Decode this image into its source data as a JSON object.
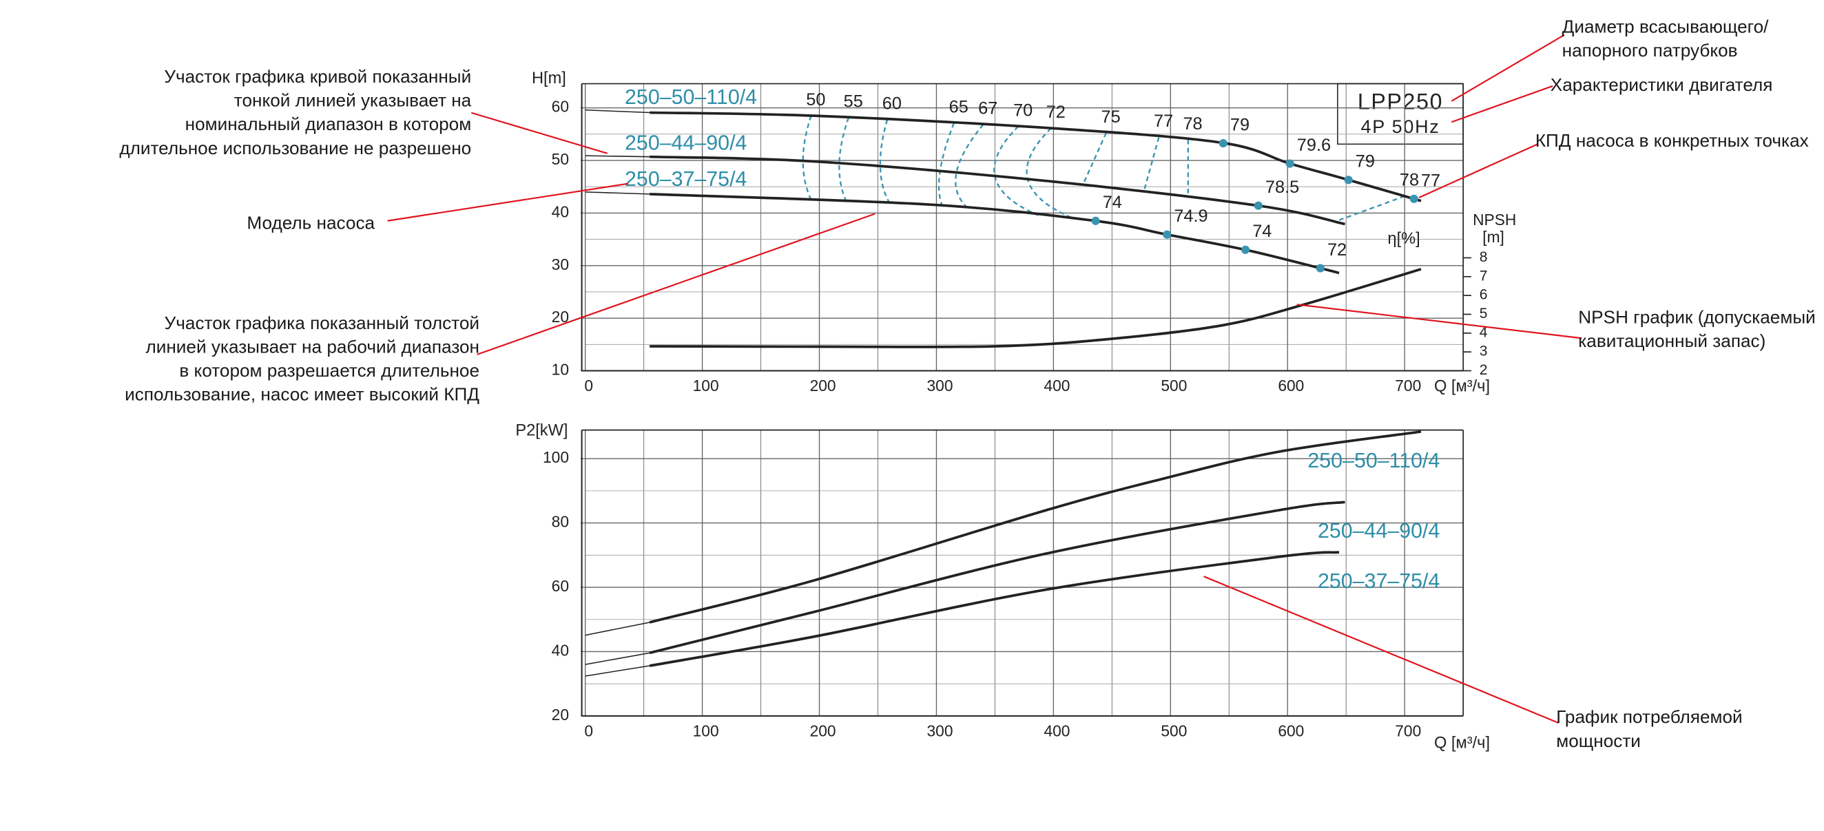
{
  "chart_data": [
    {
      "type": "line",
      "model": "LPP250",
      "motor": "4P 50Hz",
      "y_label": "H[m]",
      "x_label": "Q [м³/ч]",
      "y2_label": "NPSH",
      "y2_unit": "[m]",
      "eta_label": "η[%]",
      "xlim": [
        0,
        750
      ],
      "ylim": [
        10,
        64.6
      ],
      "y2lim": [
        2,
        17.25
      ],
      "xticks": [
        0,
        100,
        200,
        300,
        400,
        500,
        600,
        700
      ],
      "yticks": [
        10,
        20,
        30,
        40,
        50,
        60
      ],
      "y2ticks": [
        2,
        3,
        4,
        5,
        6,
        7,
        8
      ],
      "grid": true,
      "minor_grid": true,
      "series": [
        {
          "name": "250–50–110/4",
          "color": "#222222",
          "thin_x": [
            0,
            55
          ],
          "thin_values": [
            59.6,
            59.1
          ],
          "x": [
            55,
            196,
            394,
            543,
            602,
            652,
            714
          ],
          "values": [
            59.1,
            58.5,
            56.2,
            53.4,
            49.4,
            46.3,
            42.3
          ],
          "eta_points": {
            "x": [
              545,
              602,
              652,
              708
            ],
            "values": [
              79,
              79.6,
              79,
              77
            ]
          }
        },
        {
          "name": "250–44–90/4",
          "color": "#222222",
          "thin_x": [
            0,
            55
          ],
          "thin_values": [
            50.9,
            50.7
          ],
          "x": [
            55,
            196,
            394,
            575,
            649
          ],
          "values": [
            50.7,
            49.8,
            46.1,
            41.4,
            37.9
          ],
          "eta_points": {
            "x": [
              575
            ],
            "values": [
              78.5
            ]
          }
        },
        {
          "name": "250–37–75/4",
          "color": "#222222",
          "thin_x": [
            0,
            55
          ],
          "thin_values": [
            44.0,
            43.6
          ],
          "x": [
            55,
            295,
            436,
            497,
            564,
            628,
            644
          ],
          "values": [
            43.6,
            41.6,
            38.5,
            35.9,
            33.0,
            29.5,
            28.6
          ],
          "eta_points": {
            "x": [
              436,
              497,
              564,
              628
            ],
            "values": [
              74,
              74.9,
              74,
              72
            ]
          }
        },
        {
          "axis": "y2",
          "color": "#222222",
          "x": [
            55,
            200,
            350,
            445,
            543,
            613,
            714
          ],
          "values": [
            3.3,
            3.28,
            3.3,
            3.67,
            4.4,
            5.5,
            7.4
          ]
        }
      ],
      "eta_contours": {
        "color": "#3a94b0",
        "values": [
          50,
          55,
          60,
          65,
          67,
          70,
          72,
          75,
          77,
          78,
          78
        ],
        "q": [
          [
            193,
            186,
            193
          ],
          [
            225,
            217,
            223
          ],
          [
            258,
            252,
            260
          ],
          [
            315,
            303,
            305
          ],
          [
            340,
            317,
            327
          ],
          [
            370,
            350,
            387
          ],
          [
            398,
            378,
            418
          ],
          [
            445,
            425,
            null
          ],
          [
            490,
            477,
            null
          ],
          [
            515,
            515,
            null
          ],
          [
            700,
            640,
            null
          ]
        ]
      }
    },
    {
      "type": "line",
      "y_label": "P2[kW]",
      "x_label": "Q [м³/ч]",
      "xlim": [
        0,
        750
      ],
      "ylim": [
        20,
        108.9
      ],
      "xticks": [
        0,
        100,
        200,
        300,
        400,
        500,
        600,
        700
      ],
      "yticks": [
        20,
        40,
        60,
        80,
        100
      ],
      "grid": true,
      "minor_grid": true,
      "series": [
        {
          "name": "250–50–110/4",
          "color": "#222222",
          "thin_x": [
            0,
            55
          ],
          "thin_values": [
            45.1,
            49.1
          ],
          "x": [
            55,
            196,
            394,
            494,
            593,
            714
          ],
          "values": [
            49.1,
            62.2,
            84.0,
            93.8,
            102.2,
            108.4
          ]
        },
        {
          "name": "250–44–90/4",
          "color": "#222222",
          "thin_x": [
            0,
            55
          ],
          "thin_values": [
            36.0,
            39.6
          ],
          "x": [
            55,
            196,
            394,
            593,
            649
          ],
          "values": [
            39.6,
            52.4,
            70.5,
            84.0,
            86.5
          ]
        },
        {
          "name": "250–37–75/4",
          "color": "#222222",
          "thin_x": [
            0,
            55
          ],
          "thin_values": [
            32.4,
            35.6
          ],
          "x": [
            55,
            196,
            394,
            593,
            644
          ],
          "values": [
            35.6,
            44.7,
            59.3,
            69.5,
            70.9
          ]
        }
      ]
    }
  ],
  "annotations": [
    {
      "lines": [
        "Участок графика кривой показанный",
        "тонкой линией указывает на",
        "номинальный диапазон в котором",
        "длительное использование не разрешено"
      ]
    },
    {
      "lines": [
        "Модель насоса"
      ]
    },
    {
      "lines": [
        "Участок графика показанный толстой",
        "линией указывает на рабочий диапазон",
        "в котором разрешается длительное",
        "использование, насос имеет высокий КПД"
      ]
    },
    {
      "lines": [
        "Диаметр всасывающего/",
        "напорного патрубков"
      ]
    },
    {
      "lines": [
        "Характеристики двигателя"
      ]
    },
    {
      "lines": [
        "КПД насоса в конкретных точках"
      ]
    },
    {
      "lines": [
        "NPSH график (допускаемый",
        "кавитационный запас)"
      ]
    },
    {
      "lines": [
        "График потребляемой",
        "мощности"
      ]
    }
  ]
}
